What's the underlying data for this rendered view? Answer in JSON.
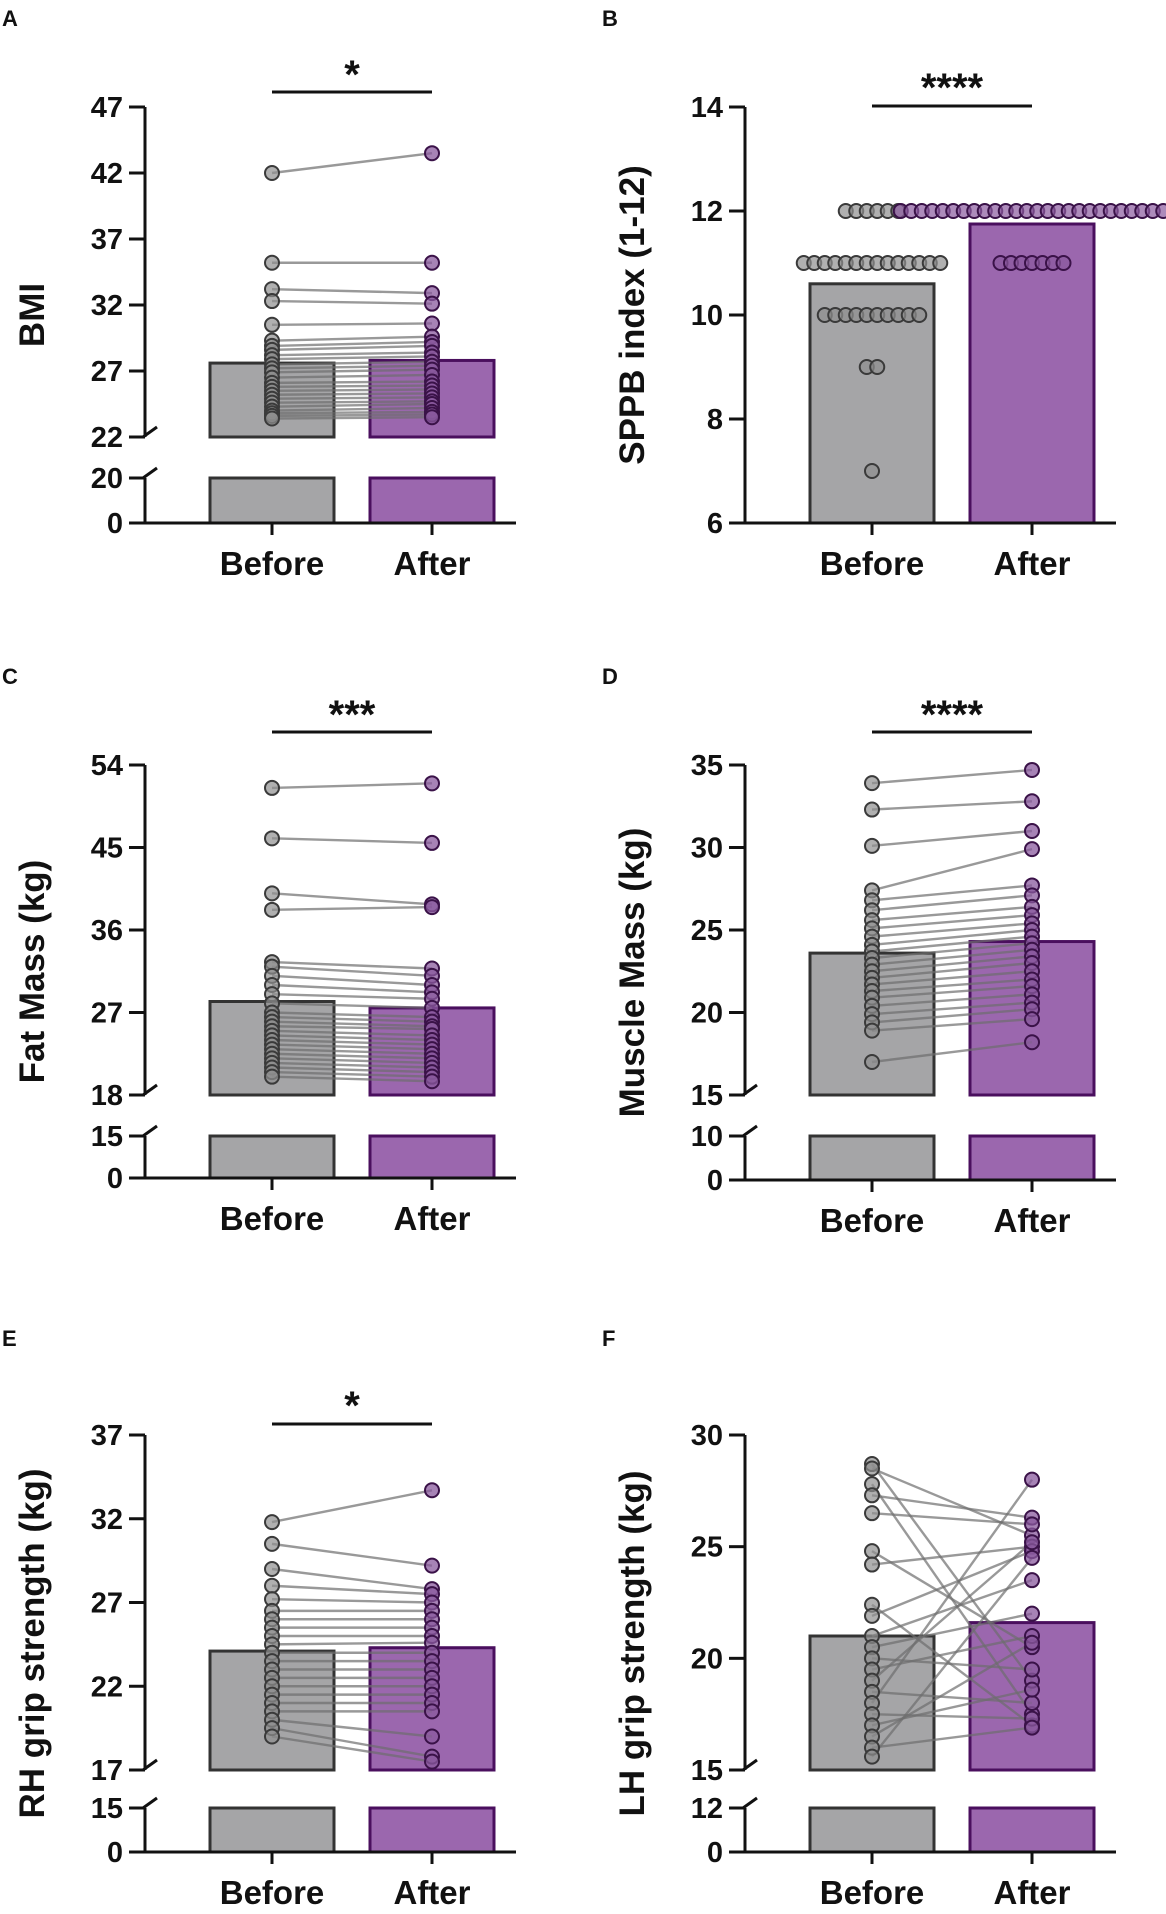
{
  "figure": {
    "colors": {
      "before_bar": "#A5A5A7",
      "before_edge": "#333333",
      "after_bar": "#9B67AE",
      "after_edge": "#4A0F5E",
      "before_dot": "#8E8E8E",
      "after_dot": "#8A5A9E",
      "line": "#6E6E6E",
      "axis": "#111111"
    }
  },
  "chart_data": [
    {
      "type": "bar",
      "panel": "A",
      "title": "",
      "ylabel": "BMI",
      "categories": [
        "Before",
        "After"
      ],
      "means": [
        27.6,
        27.8
      ],
      "axis_break": true,
      "lower_ylim": [
        0,
        20
      ],
      "lower_ticks": [
        0,
        20
      ],
      "upper_ylim": [
        22,
        47
      ],
      "upper_ticks": [
        22,
        27,
        32,
        37,
        42,
        47
      ],
      "significance": "*",
      "paired": {
        "before": [
          42.0,
          35.2,
          33.2,
          32.3,
          30.5,
          29.3,
          28.9,
          28.6,
          28.2,
          27.9,
          27.5,
          27.2,
          26.9,
          26.5,
          26.1,
          25.8,
          25.5,
          25.2,
          24.9,
          24.6,
          24.3,
          24.0,
          23.8,
          23.6,
          23.4
        ],
        "after": [
          43.5,
          35.2,
          32.9,
          32.1,
          30.6,
          29.6,
          29.2,
          28.9,
          28.4,
          28.1,
          27.7,
          27.4,
          27.1,
          26.7,
          26.2,
          25.9,
          25.6,
          25.3,
          25.0,
          24.7,
          24.5,
          24.2,
          23.9,
          23.7,
          23.5
        ]
      }
    },
    {
      "type": "bar",
      "panel": "B",
      "title": "",
      "ylabel": "SPPB index (1-12)",
      "categories": [
        "Before",
        "After"
      ],
      "means": [
        10.6,
        11.75
      ],
      "axis_break": false,
      "ylim": [
        6,
        14
      ],
      "ticks": [
        6,
        8,
        10,
        12,
        14
      ],
      "significance": "****",
      "scatter": {
        "before": [
          12,
          12,
          12,
          12,
          12,
          12,
          11,
          11,
          11,
          11,
          11,
          11,
          11,
          11,
          11,
          11,
          11,
          11,
          11,
          11,
          10,
          10,
          10,
          10,
          10,
          10,
          10,
          10,
          10,
          10,
          9,
          9,
          7
        ],
        "after": [
          12,
          12,
          12,
          12,
          12,
          12,
          12,
          12,
          12,
          12,
          12,
          12,
          12,
          12,
          12,
          12,
          12,
          12,
          12,
          12,
          12,
          12,
          12,
          12,
          12,
          12,
          11,
          11,
          11,
          11,
          11,
          11,
          11
        ]
      }
    },
    {
      "type": "bar",
      "panel": "C",
      "title": "",
      "ylabel": "Fat Mass (kg)",
      "categories": [
        "Before",
        "After"
      ],
      "means": [
        28.2,
        27.5
      ],
      "axis_break": true,
      "lower_ylim": [
        0,
        15
      ],
      "lower_ticks": [
        0,
        15
      ],
      "upper_ylim": [
        18,
        54
      ],
      "upper_ticks": [
        18,
        27,
        36,
        45,
        54
      ],
      "significance": "***",
      "paired": {
        "before": [
          51.5,
          46.0,
          40.0,
          38.2,
          32.5,
          32.0,
          31.0,
          30.0,
          29.0,
          28.0,
          27.0,
          26.5,
          26.0,
          25.5,
          25.0,
          24.5,
          24.0,
          23.5,
          23.0,
          22.5,
          22.0,
          21.5,
          21.0,
          20.5,
          20.0
        ],
        "after": [
          52.0,
          45.5,
          38.8,
          38.5,
          31.8,
          31.0,
          30.0,
          29.2,
          28.5,
          27.5,
          26.5,
          26.0,
          25.5,
          25.2,
          24.5,
          24.0,
          23.5,
          23.0,
          22.5,
          22.0,
          21.5,
          21.0,
          20.5,
          20.0,
          19.5
        ]
      }
    },
    {
      "type": "bar",
      "panel": "D",
      "title": "",
      "ylabel": "Muscle Mass (kg)",
      "categories": [
        "Before",
        "After"
      ],
      "means": [
        23.6,
        24.3
      ],
      "axis_break": true,
      "lower_ylim": [
        0,
        10
      ],
      "lower_ticks": [
        0,
        10
      ],
      "upper_ylim": [
        15,
        35
      ],
      "upper_ticks": [
        15,
        20,
        25,
        30,
        35
      ],
      "significance": "****",
      "paired": {
        "before": [
          33.9,
          32.3,
          30.1,
          27.4,
          26.8,
          26.2,
          25.6,
          25.1,
          24.6,
          24.1,
          23.7,
          23.3,
          22.9,
          22.5,
          22.1,
          21.7,
          21.3,
          20.9,
          20.4,
          19.9,
          19.4,
          18.9,
          17.0
        ],
        "after": [
          34.7,
          32.8,
          31.0,
          29.9,
          27.7,
          27.1,
          26.4,
          25.9,
          25.4,
          25.0,
          24.6,
          24.2,
          23.8,
          23.4,
          23.0,
          22.5,
          22.0,
          21.6,
          21.1,
          20.6,
          20.2,
          19.6,
          18.2
        ]
      }
    },
    {
      "type": "bar",
      "panel": "E",
      "title": "",
      "ylabel": "RH grip strength (kg)",
      "categories": [
        "Before",
        "After"
      ],
      "means": [
        24.1,
        24.3
      ],
      "axis_break": true,
      "lower_ylim": [
        0,
        15
      ],
      "lower_ticks": [
        0,
        15
      ],
      "upper_ylim": [
        17,
        37
      ],
      "upper_ticks": [
        17,
        22,
        27,
        32,
        37
      ],
      "significance": "*",
      "paired": {
        "before": [
          31.8,
          30.5,
          29.0,
          28.0,
          27.2,
          26.5,
          26.0,
          25.5,
          25.0,
          24.5,
          24.0,
          23.5,
          23.0,
          22.5,
          22.0,
          21.5,
          21.0,
          20.5,
          20.0,
          19.5,
          19.0
        ],
        "after": [
          33.7,
          29.2,
          27.8,
          27.5,
          27.0,
          26.5,
          26.0,
          25.5,
          25.0,
          24.6,
          24.0,
          23.5,
          23.0,
          22.5,
          22.0,
          21.5,
          21.0,
          20.5,
          19.0,
          17.8,
          17.5
        ]
      }
    },
    {
      "type": "bar",
      "panel": "F",
      "title": "",
      "ylabel": "LH grip strength (kg)",
      "categories": [
        "Before",
        "After"
      ],
      "means": [
        21.0,
        21.6
      ],
      "axis_break": true,
      "lower_ylim": [
        0,
        12
      ],
      "lower_ticks": [
        0,
        12
      ],
      "upper_ylim": [
        15,
        30
      ],
      "upper_ticks": [
        15,
        20,
        25,
        30
      ],
      "significance": "",
      "paired": {
        "before": [
          28.7,
          28.5,
          27.8,
          27.3,
          26.5,
          24.8,
          24.2,
          22.4,
          21.9,
          21.0,
          20.5,
          20.0,
          19.5,
          19.0,
          18.5,
          18.0,
          17.5,
          17.0,
          16.5,
          16.0,
          15.6
        ],
        "after": [
          19.0,
          25.5,
          17.5,
          26.3,
          26.0,
          20.5,
          25.0,
          17.0,
          24.8,
          23.5,
          22.0,
          19.5,
          21.0,
          25.2,
          18.0,
          28.0,
          17.3,
          18.6,
          20.7,
          16.9,
          24.5
        ]
      }
    }
  ]
}
